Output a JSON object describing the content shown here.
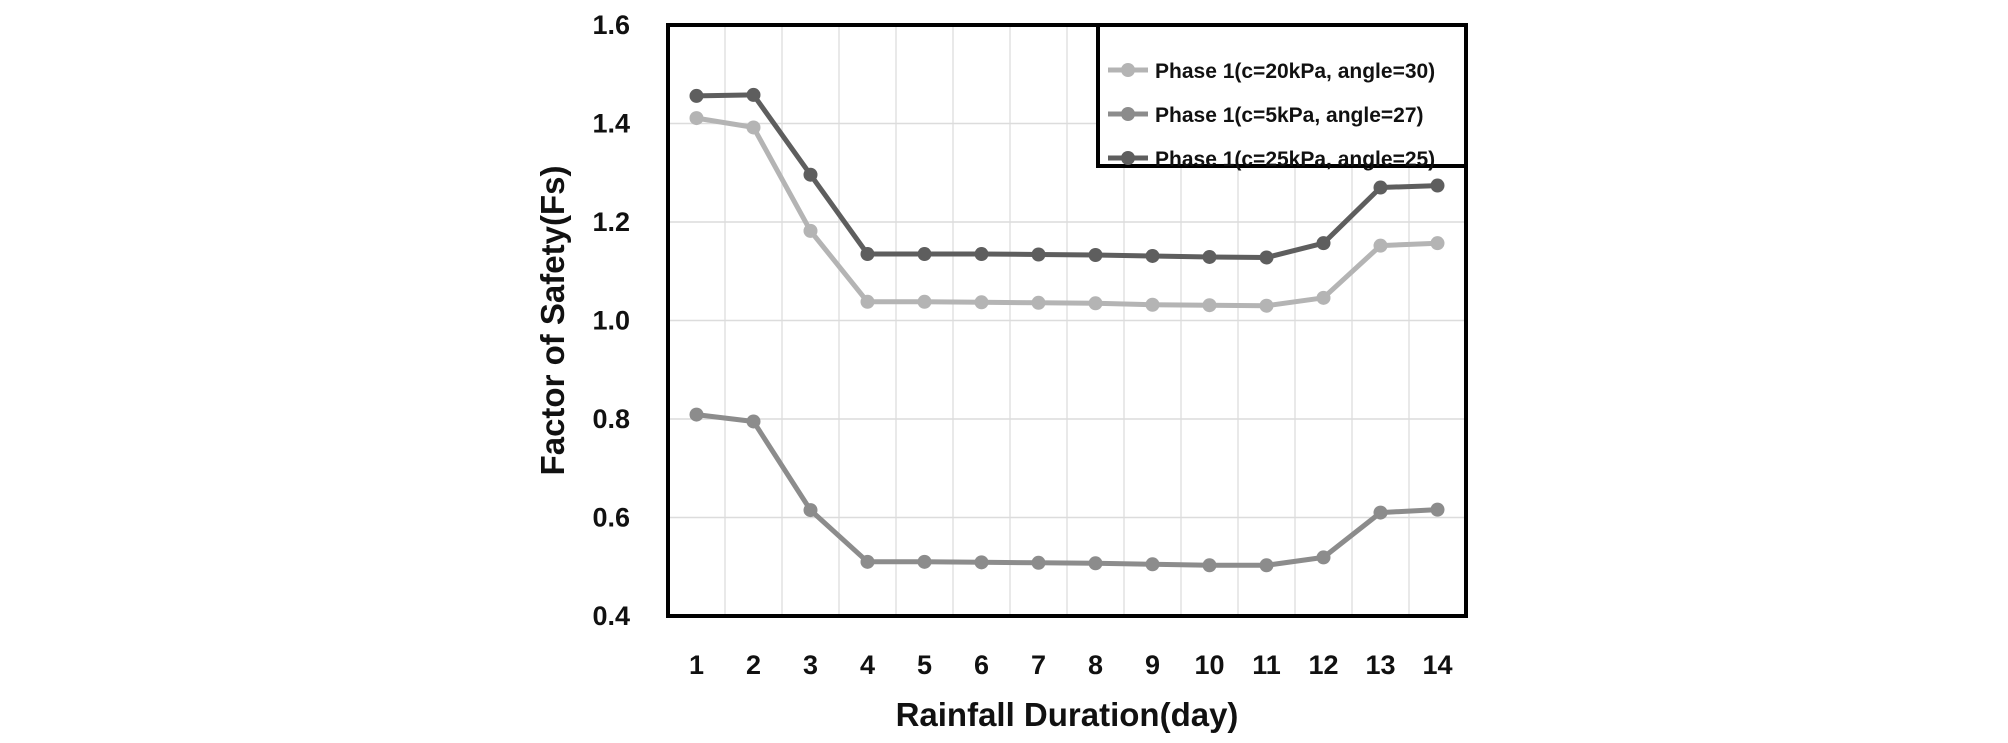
{
  "chart_data": {
    "type": "line",
    "title": "",
    "xlabel": "Rainfall Duration(day)",
    "ylabel": "Factor of Safety(Fs)",
    "x": [
      1,
      2,
      3,
      4,
      5,
      6,
      7,
      8,
      9,
      10,
      11,
      12,
      13,
      14
    ],
    "x_tick_labels": [
      "1",
      "2",
      "3",
      "4",
      "5",
      "6",
      "7",
      "8",
      "9",
      "10",
      "11",
      "12",
      "13",
      "14"
    ],
    "ylim": [
      0.4,
      1.6
    ],
    "y_tick_labels": [
      "0.4",
      "0.6",
      "0.8",
      "1.0",
      "1.2",
      "1.4",
      "1.6"
    ],
    "grid": true,
    "legend_position": "top-right",
    "series": [
      {
        "name": "Phase 1(c=20kPa, angle=30)",
        "color": "#b4b4b4",
        "values": [
          1.411,
          1.392,
          1.182,
          1.038,
          1.038,
          1.037,
          1.036,
          1.035,
          1.032,
          1.031,
          1.03,
          1.046,
          1.152,
          1.157
        ]
      },
      {
        "name": "Phase 1(c=5kPa, angle=27)",
        "color": "#8c8c8c",
        "values": [
          0.809,
          0.795,
          0.615,
          0.51,
          0.51,
          0.509,
          0.508,
          0.507,
          0.505,
          0.503,
          0.503,
          0.519,
          0.61,
          0.616
        ]
      },
      {
        "name": "Phase 1(c=25kPa, angle=25)",
        "color": "#5e5e5e",
        "values": [
          1.456,
          1.458,
          1.296,
          1.135,
          1.135,
          1.135,
          1.134,
          1.133,
          1.131,
          1.129,
          1.128,
          1.157,
          1.27,
          1.274
        ]
      }
    ]
  }
}
